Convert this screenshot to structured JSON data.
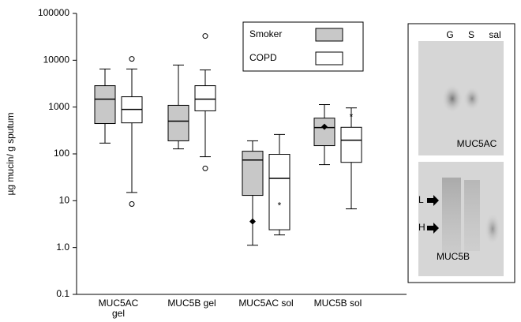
{
  "chart_data": {
    "type": "box",
    "y_label": "µg mucin/ g sputum",
    "log_scale": true,
    "categories": [
      "MUC5AC gel",
      "MUC5B gel",
      "MUC5AC sol",
      "MUC5B sol"
    ],
    "ylim": [
      0.1,
      100000
    ],
    "yticks": [
      0.1,
      {
        "value": 1,
        "label": "1.0"
      },
      10,
      100,
      1000,
      10000,
      100000
    ],
    "legend_position": "top",
    "series": [
      {
        "name": "Smoker",
        "color": "#c8c8c8",
        "min": [
          170,
          128,
          1.12,
          59
        ],
        "q1": [
          445,
          190,
          13,
          150
        ],
        "median": [
          1480,
          500,
          74,
          365
        ],
        "q3": [
          2860,
          1090,
          114,
          580
        ],
        "max": [
          6500,
          7900,
          190,
          1130
        ],
        "outliers": [
          [],
          [],
          [],
          []
        ],
        "diamonds": [
          null,
          null,
          3.6,
          380
        ]
      },
      {
        "name": "COPD",
        "color": "#ffffff",
        "min": [
          15,
          87,
          1.86,
          6.7
        ],
        "q1": [
          460,
          830,
          2.4,
          66
        ],
        "median": [
          890,
          1480,
          30,
          196
        ],
        "q3": [
          1660,
          2860,
          98,
          370
        ],
        "max": [
          6500,
          6200,
          260,
          960
        ],
        "outliers": [
          [
            10700,
            8.5
          ],
          [
            33000,
            49
          ],
          [],
          []
        ],
        "stars": [
          null,
          null,
          8.5,
          680
        ]
      }
    ]
  },
  "inset": {
    "lanes": [
      "G",
      "S",
      "sal"
    ],
    "panels": [
      "MUC5AC",
      "MUC5B"
    ],
    "bands": [
      "L",
      "H"
    ]
  }
}
